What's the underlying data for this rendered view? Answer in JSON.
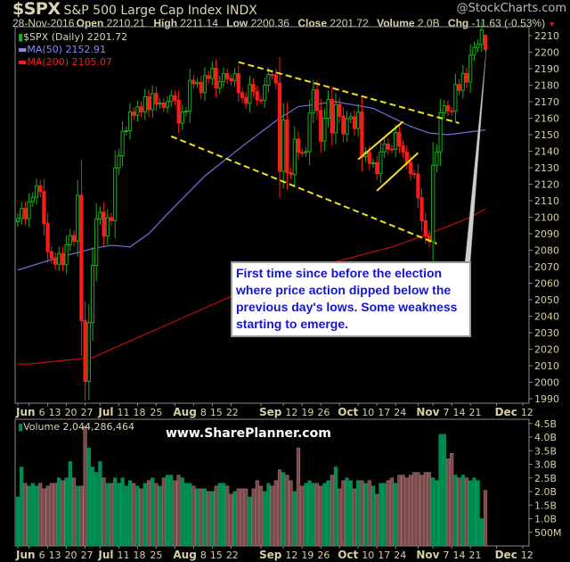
{
  "header": {
    "symbol": "$SPX",
    "name": "S&P 500 Large Cap Index",
    "exchange": "INDX",
    "brand": "@StockCharts.com",
    "date": "28-Nov-2016",
    "open_label": "Open",
    "open": "2210.21",
    "high_label": "High",
    "high": "2211.14",
    "low_label": "Low",
    "low": "2200.36",
    "close_label": "Close",
    "close": "2201.72",
    "volume_label": "Volume",
    "volume": "2.0B",
    "chg_label": "Chg",
    "chg": "-11.63 (-0.53%)",
    "chg_icon": "triangle-down-icon"
  },
  "legend": {
    "price": "$SPX (Daily) 2201.72",
    "ma50": "MA(50) 2152.91",
    "ma200": "MA(200) 2105.07",
    "volume": "Volume 2,044,286,464"
  },
  "watermark": "www.SharePlanner.com",
  "annotation": "First time since before the election where price action dipped below the previous day's lows. Some weakness starting to emerge.",
  "colors": {
    "up": "#18b018",
    "down": "#ff1a1a",
    "ma50": "#7070e0",
    "ma200": "#c01010",
    "vol_up": "#008a50",
    "vol_down": "#7a4a4a",
    "trend": "#f0e020",
    "axis_text": "#d6cfa6"
  },
  "chart_data": [
    {
      "type": "candlestick",
      "title": "$SPX (Daily)",
      "ylim": [
        1985,
        2215
      ],
      "y_ticks": [
        1990,
        2000,
        2010,
        2020,
        2030,
        2040,
        2050,
        2060,
        2070,
        2080,
        2090,
        2100,
        2110,
        2120,
        2130,
        2140,
        2150,
        2160,
        2170,
        2180,
        2190,
        2200,
        2210
      ],
      "x_ticks": [
        {
          "label": "Jun",
          "date": "06-01",
          "bold": true
        },
        {
          "label": "6",
          "date": "06-06"
        },
        {
          "label": "13",
          "date": "06-13"
        },
        {
          "label": "20",
          "date": "06-20"
        },
        {
          "label": "27",
          "date": "06-27"
        },
        {
          "label": "Jul",
          "date": "07-01",
          "bold": true
        },
        {
          "label": "11",
          "date": "07-11"
        },
        {
          "label": "18",
          "date": "07-18"
        },
        {
          "label": "25",
          "date": "07-25"
        },
        {
          "label": "Aug",
          "date": "08-01",
          "bold": true
        },
        {
          "label": "8",
          "date": "08-08"
        },
        {
          "label": "15",
          "date": "08-15"
        },
        {
          "label": "22",
          "date": "08-22"
        },
        {
          "label": "Sep",
          "date": "09-01",
          "bold": true
        },
        {
          "label": "12",
          "date": "09-12"
        },
        {
          "label": "19",
          "date": "09-19"
        },
        {
          "label": "26",
          "date": "09-26"
        },
        {
          "label": "Oct",
          "date": "10-03",
          "bold": true
        },
        {
          "label": "10",
          "date": "10-10"
        },
        {
          "label": "17",
          "date": "10-17"
        },
        {
          "label": "24",
          "date": "10-24"
        },
        {
          "label": "Nov",
          "date": "11-01",
          "bold": true
        },
        {
          "label": "7",
          "date": "11-07"
        },
        {
          "label": "14",
          "date": "11-14"
        },
        {
          "label": "21",
          "date": "11-21"
        },
        {
          "label": "Dec",
          "date": "12-01",
          "bold": true
        },
        {
          "label": "12",
          "date": "12-12"
        }
      ],
      "dates": [
        "06-01",
        "06-02",
        "06-03",
        "06-06",
        "06-07",
        "06-08",
        "06-09",
        "06-10",
        "06-13",
        "06-14",
        "06-15",
        "06-16",
        "06-17",
        "06-20",
        "06-21",
        "06-22",
        "06-23",
        "06-24",
        "06-27",
        "06-28",
        "06-29",
        "06-30",
        "07-01",
        "07-05",
        "07-06",
        "07-07",
        "07-08",
        "07-11",
        "07-12",
        "07-13",
        "07-14",
        "07-15",
        "07-18",
        "07-19",
        "07-20",
        "07-21",
        "07-22",
        "07-25",
        "07-26",
        "07-27",
        "07-28",
        "07-29",
        "08-01",
        "08-02",
        "08-03",
        "08-04",
        "08-05",
        "08-08",
        "08-09",
        "08-10",
        "08-11",
        "08-12",
        "08-15",
        "08-16",
        "08-17",
        "08-18",
        "08-19",
        "08-22",
        "08-23",
        "08-24",
        "08-25",
        "08-26",
        "08-29",
        "08-30",
        "08-31",
        "09-01",
        "09-02",
        "09-06",
        "09-07",
        "09-08",
        "09-09",
        "09-12",
        "09-13",
        "09-14",
        "09-15",
        "09-16",
        "09-19",
        "09-20",
        "09-21",
        "09-22",
        "09-23",
        "09-26",
        "09-27",
        "09-28",
        "09-29",
        "09-30",
        "10-03",
        "10-04",
        "10-05",
        "10-06",
        "10-07",
        "10-10",
        "10-11",
        "10-12",
        "10-13",
        "10-14",
        "10-17",
        "10-18",
        "10-19",
        "10-20",
        "10-21",
        "10-24",
        "10-25",
        "10-26",
        "10-27",
        "10-28",
        "10-31",
        "11-01",
        "11-02",
        "11-03",
        "11-04",
        "11-07",
        "11-08",
        "11-09",
        "11-10",
        "11-11",
        "11-14",
        "11-15",
        "11-16",
        "11-17",
        "11-18",
        "11-21",
        "11-22",
        "11-23",
        "11-25",
        "11-28"
      ],
      "close": [
        2099.3,
        2105.3,
        2099.1,
        2109.4,
        2112.1,
        2119.1,
        2115.5,
        2096.1,
        2079.1,
        2075.3,
        2071.5,
        2078.0,
        2071.2,
        2083.3,
        2088.9,
        2085.5,
        2113.3,
        2037.4,
        2000.5,
        2036.1,
        2070.8,
        2098.9,
        2103.0,
        2088.6,
        2099.7,
        2097.9,
        2129.9,
        2137.2,
        2152.1,
        2152.4,
        2163.8,
        2161.7,
        2166.9,
        2163.8,
        2173.0,
        2165.2,
        2175.0,
        2168.5,
        2169.2,
        2166.6,
        2170.1,
        2173.6,
        2170.8,
        2157.0,
        2163.8,
        2164.3,
        2182.9,
        2180.9,
        2181.7,
        2175.5,
        2185.8,
        2184.1,
        2190.2,
        2178.2,
        2182.2,
        2187.0,
        2183.9,
        2182.6,
        2186.9,
        2175.4,
        2172.5,
        2169.0,
        2180.4,
        2176.1,
        2171.0,
        2170.9,
        2180.0,
        2186.5,
        2186.2,
        2181.3,
        2127.8,
        2159.0,
        2127.0,
        2125.8,
        2147.3,
        2139.2,
        2139.1,
        2139.8,
        2163.1,
        2177.2,
        2164.7,
        2146.1,
        2159.9,
        2171.4,
        2151.1,
        2168.3,
        2161.2,
        2150.5,
        2159.7,
        2160.8,
        2153.7,
        2163.7,
        2136.7,
        2139.2,
        2132.6,
        2133.0,
        2126.5,
        2139.6,
        2144.3,
        2141.3,
        2141.2,
        2151.3,
        2143.2,
        2139.4,
        2133.0,
        2126.4,
        2126.2,
        2111.7,
        2097.9,
        2088.7,
        2085.2,
        2131.5,
        2139.6,
        2163.3,
        2167.5,
        2164.5,
        2164.2,
        2180.4,
        2176.9,
        2187.1,
        2181.9,
        2198.2,
        2202.9,
        2204.7,
        2213.4,
        2201.7
      ],
      "last_bar": {
        "open": 2210.21,
        "high": 2211.14,
        "low": 2200.36,
        "close": 2201.72
      },
      "ma50": [
        {
          "date": "06-01",
          "value": 2068
        },
        {
          "date": "06-15",
          "value": 2075
        },
        {
          "date": "06-29",
          "value": 2081
        },
        {
          "date": "07-07",
          "value": 2083
        },
        {
          "date": "07-14",
          "value": 2082
        },
        {
          "date": "07-21",
          "value": 2090
        },
        {
          "date": "07-28",
          "value": 2102
        },
        {
          "date": "08-11",
          "value": 2125
        },
        {
          "date": "08-25",
          "value": 2143
        },
        {
          "date": "09-09",
          "value": 2160
        },
        {
          "date": "09-16",
          "value": 2167
        },
        {
          "date": "09-30",
          "value": 2170
        },
        {
          "date": "10-14",
          "value": 2166
        },
        {
          "date": "10-28",
          "value": 2155
        },
        {
          "date": "11-04",
          "value": 2151
        },
        {
          "date": "11-11",
          "value": 2150
        },
        {
          "date": "11-28",
          "value": 2152.91
        }
      ],
      "ma200": [
        {
          "date": "06-01",
          "value": 2011
        },
        {
          "date": "06-06",
          "value": 2011
        },
        {
          "date": "06-29",
          "value": 2015
        },
        {
          "date": "07-28",
          "value": 2035
        },
        {
          "date": "08-25",
          "value": 2055
        },
        {
          "date": "09-23",
          "value": 2070
        },
        {
          "date": "10-21",
          "value": 2082
        },
        {
          "date": "11-04",
          "value": 2090
        },
        {
          "date": "11-21",
          "value": 2100
        },
        {
          "date": "11-28",
          "value": 2105.07
        }
      ],
      "trendlines": [
        {
          "style": "dashed",
          "from": {
            "date": "08-24",
            "value": 2194
          },
          "to": {
            "date": "11-16",
            "value": 2157
          }
        },
        {
          "style": "dashed",
          "from": {
            "date": "07-29",
            "value": 2149
          },
          "to": {
            "date": "11-08",
            "value": 2084
          }
        },
        {
          "style": "solid",
          "from": {
            "date": "10-10",
            "value": 2135
          },
          "to": {
            "date": "10-26",
            "value": 2158
          }
        },
        {
          "style": "solid",
          "from": {
            "date": "10-17",
            "value": 2116
          },
          "to": {
            "date": "11-01",
            "value": 2139
          }
        }
      ]
    },
    {
      "type": "bar",
      "title": "Volume",
      "ylim": [
        0,
        4.6
      ],
      "y_ticks": [
        {
          "v": 0.5,
          "label": "500M"
        },
        {
          "v": 1.0,
          "label": "1.0B"
        },
        {
          "v": 1.5,
          "label": "1.5B"
        },
        {
          "v": 2.0,
          "label": "2.0B"
        },
        {
          "v": 2.5,
          "label": "2.5B"
        },
        {
          "v": 3.0,
          "label": "3.0B"
        },
        {
          "v": 3.5,
          "label": "3.5B"
        },
        {
          "v": 4.0,
          "label": "4.0B"
        },
        {
          "v": 4.5,
          "label": "4.5B"
        }
      ],
      "unit": "billions",
      "values": [
        1.8,
        2.9,
        2.3,
        2.2,
        2.3,
        2.2,
        2.3,
        2.1,
        2.2,
        2.3,
        2.3,
        2.5,
        2.4,
        2.5,
        3.1,
        2.5,
        2.2,
        2.2,
        4.4,
        3.6,
        2.9,
        2.7,
        3.1,
        2.5,
        2.3,
        2.3,
        2.5,
        2.3,
        2.5,
        2.2,
        2.4,
        2.3,
        2.2,
        2.1,
        2.3,
        2.4,
        2.5,
        2.3,
        2.2,
        2.5,
        2.6,
        2.6,
        2.4,
        2.6,
        2.5,
        2.3,
        2.3,
        2.2,
        2.1,
        2.1,
        2.1,
        2.0,
        2.0,
        2.2,
        2.3,
        2.3,
        2.2,
        1.9,
        2.0,
        2.1,
        2.1,
        2.1,
        1.8,
        2.1,
        2.4,
        2.2,
        2.0,
        2.3,
        2.2,
        2.4,
        2.8,
        2.7,
        2.6,
        2.4,
        2.0,
        3.6,
        2.2,
        2.3,
        2.4,
        2.3,
        2.3,
        2.2,
        2.3,
        2.4,
        2.6,
        2.9,
        2.1,
        2.4,
        2.5,
        2.4,
        2.1,
        2.4,
        2.4,
        2.3,
        2.4,
        2.2,
        1.9,
        2.3,
        2.3,
        2.4,
        2.5,
        2.3,
        2.6,
        2.6,
        2.5,
        2.6,
        2.7,
        2.7,
        2.6,
        2.7,
        2.7,
        2.5,
        2.4,
        4.1,
        4.1,
        3.2,
        3.4,
        2.6,
        2.5,
        2.6,
        2.5,
        2.4,
        2.5,
        2.4,
        1.0,
        2.04
      ]
    }
  ]
}
